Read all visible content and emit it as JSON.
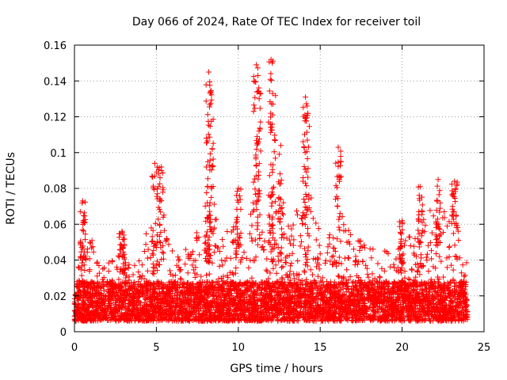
{
  "chart_data": {
    "type": "scatter",
    "title": "Day 066 of 2024, Rate Of TEC Index for receiver toil",
    "xlabel": "GPS time / hours",
    "ylabel": "ROTI / TECUs",
    "xlim": [
      0,
      25
    ],
    "ylim": [
      0,
      0.16
    ],
    "xticks": [
      0,
      5,
      10,
      15,
      20,
      25
    ],
    "xtick_labels": [
      "0",
      "5",
      "10",
      "15",
      "20",
      "25"
    ],
    "yticks": [
      0,
      0.02,
      0.04,
      0.06,
      0.08,
      0.1,
      0.12,
      0.14,
      0.16
    ],
    "ytick_labels": [
      "0",
      "0.02",
      "0.04",
      "0.06",
      "0.08",
      "0.1",
      "0.12",
      "0.14",
      "0.16"
    ],
    "grid": true,
    "marker": "+",
    "marker_color": "#ff0000",
    "series": [
      {
        "name": "ROTI",
        "baseline": 0.015,
        "spikes": [
          {
            "x": 0.5,
            "y": 0.073
          },
          {
            "x": 2.9,
            "y": 0.056
          },
          {
            "x": 4.9,
            "y": 0.094
          },
          {
            "x": 5.3,
            "y": 0.092
          },
          {
            "x": 8.1,
            "y": 0.072
          },
          {
            "x": 8.2,
            "y": 0.145
          },
          {
            "x": 8.3,
            "y": 0.134
          },
          {
            "x": 10.0,
            "y": 0.08
          },
          {
            "x": 11.1,
            "y": 0.149
          },
          {
            "x": 11.2,
            "y": 0.143
          },
          {
            "x": 12.0,
            "y": 0.152
          },
          {
            "x": 12.1,
            "y": 0.133
          },
          {
            "x": 12.6,
            "y": 0.104
          },
          {
            "x": 14.1,
            "y": 0.131
          },
          {
            "x": 14.2,
            "y": 0.126
          },
          {
            "x": 16.1,
            "y": 0.103
          },
          {
            "x": 20.0,
            "y": 0.062
          },
          {
            "x": 21.1,
            "y": 0.081
          },
          {
            "x": 22.2,
            "y": 0.085
          },
          {
            "x": 23.2,
            "y": 0.084
          }
        ],
        "envelope": [
          {
            "x": 0.0,
            "y": 0.03
          },
          {
            "x": 0.4,
            "y": 0.055
          },
          {
            "x": 1.0,
            "y": 0.055
          },
          {
            "x": 1.5,
            "y": 0.038
          },
          {
            "x": 2.5,
            "y": 0.04
          },
          {
            "x": 3.0,
            "y": 0.05
          },
          {
            "x": 3.5,
            "y": 0.033
          },
          {
            "x": 4.0,
            "y": 0.045
          },
          {
            "x": 4.8,
            "y": 0.07
          },
          {
            "x": 5.4,
            "y": 0.065
          },
          {
            "x": 6.0,
            "y": 0.045
          },
          {
            "x": 7.0,
            "y": 0.05
          },
          {
            "x": 7.8,
            "y": 0.06
          },
          {
            "x": 8.2,
            "y": 0.09
          },
          {
            "x": 9.0,
            "y": 0.055
          },
          {
            "x": 10.0,
            "y": 0.06
          },
          {
            "x": 10.6,
            "y": 0.06
          },
          {
            "x": 11.1,
            "y": 0.1
          },
          {
            "x": 11.6,
            "y": 0.06
          },
          {
            "x": 12.2,
            "y": 0.09
          },
          {
            "x": 12.7,
            "y": 0.085
          },
          {
            "x": 13.2,
            "y": 0.06
          },
          {
            "x": 14.2,
            "y": 0.095
          },
          {
            "x": 14.8,
            "y": 0.06
          },
          {
            "x": 15.5,
            "y": 0.055
          },
          {
            "x": 16.1,
            "y": 0.075
          },
          {
            "x": 17.0,
            "y": 0.05
          },
          {
            "x": 18.0,
            "y": 0.055
          },
          {
            "x": 19.0,
            "y": 0.045
          },
          {
            "x": 20.0,
            "y": 0.05
          },
          {
            "x": 21.0,
            "y": 0.06
          },
          {
            "x": 22.0,
            "y": 0.075
          },
          {
            "x": 22.5,
            "y": 0.07
          },
          {
            "x": 23.3,
            "y": 0.07
          },
          {
            "x": 24.0,
            "y": 0.04
          }
        ],
        "x_range": [
          0,
          24
        ]
      }
    ]
  }
}
